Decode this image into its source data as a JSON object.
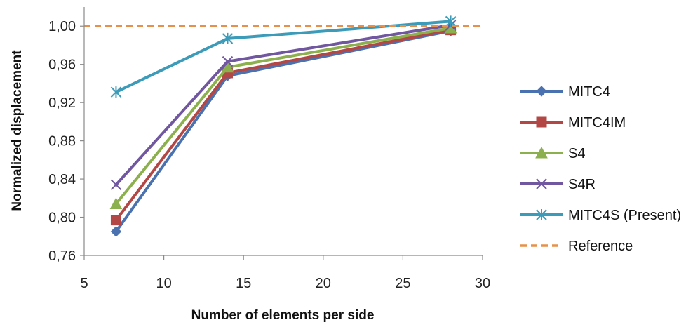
{
  "chart_data": {
    "type": "line",
    "title": "",
    "xlabel": "Number of elements per side",
    "ylabel": "Normalized displacement",
    "xlim": [
      5,
      30
    ],
    "ylim": [
      0.76,
      1.02
    ],
    "x_ticks": [
      5,
      10,
      15,
      20,
      25,
      30
    ],
    "x_tick_labels": [
      "5",
      "10",
      "15",
      "20",
      "25",
      "30"
    ],
    "y_ticks": [
      0.76,
      0.8,
      0.84,
      0.88,
      0.92,
      0.96,
      1.0
    ],
    "y_tick_labels": [
      "0,76",
      "0,80",
      "0,84",
      "0,88",
      "0,92",
      "0,96",
      "1,00"
    ],
    "grid": false,
    "legend_position": "right",
    "series": [
      {
        "name": "MITC4",
        "color": "#4A72B0",
        "marker": "diamond",
        "x": [
          7,
          14,
          28
        ],
        "y": [
          0.785,
          0.948,
          0.995
        ]
      },
      {
        "name": "MITC4IM",
        "color": "#B34745",
        "marker": "square",
        "x": [
          7,
          14,
          28
        ],
        "y": [
          0.797,
          0.951,
          0.996
        ]
      },
      {
        "name": "S4",
        "color": "#8DB04E",
        "marker": "triangle",
        "x": [
          7,
          14,
          28
        ],
        "y": [
          0.814,
          0.957,
          0.998
        ]
      },
      {
        "name": "S4R",
        "color": "#7057A0",
        "marker": "x",
        "x": [
          7,
          14,
          28
        ],
        "y": [
          0.834,
          0.963,
          1.001
        ]
      },
      {
        "name": "MITC4S (Present)",
        "color": "#3B9BB8",
        "marker": "asterisk",
        "x": [
          7,
          14,
          28
        ],
        "y": [
          0.931,
          0.987,
          1.005
        ]
      },
      {
        "name": "Reference",
        "color": "#E8904A",
        "marker": "none",
        "dashed": true,
        "x": [
          5,
          30
        ],
        "y": [
          1.0,
          1.0
        ]
      }
    ]
  }
}
